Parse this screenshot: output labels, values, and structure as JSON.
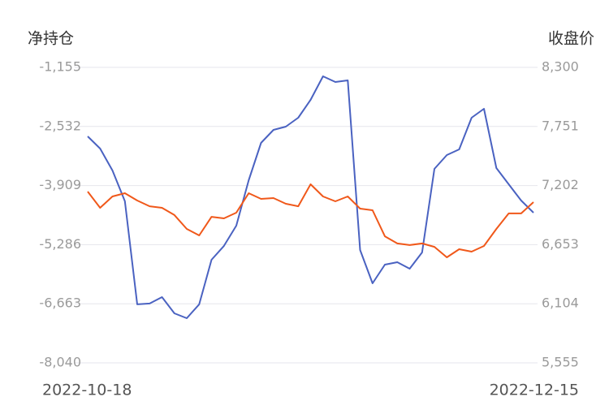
{
  "chart_data": {
    "type": "line",
    "y_title": "净持仓",
    "y2_title": "收盘价",
    "categories": [
      "2022-10-18",
      null,
      null,
      null,
      null,
      null,
      null,
      null,
      null,
      null,
      null,
      null,
      null,
      null,
      null,
      null,
      null,
      null,
      null,
      null,
      null,
      null,
      null,
      null,
      null,
      null,
      null,
      null,
      null,
      null,
      null,
      null,
      null,
      null,
      null,
      null,
      "2022-12-15"
    ],
    "series": [
      {
        "color": "#4a62c1",
        "values": [
          -2762,
          -3046,
          -3557,
          -4275,
          -6677,
          -6658,
          -6507,
          -6886,
          -6999,
          -6677,
          -5637,
          -5315,
          -4843,
          -3784,
          -2914,
          -2611,
          -2536,
          -2328,
          -1912,
          -1363,
          -1495,
          -1458,
          -5411,
          -6186,
          -5751,
          -5694,
          -5846,
          -5467,
          -3519,
          -3198,
          -3065,
          -2328,
          -2120,
          -3500,
          -3879,
          -4257,
          -4541
        ]
      },
      {
        "color": "#f0581a",
        "axis": "y2",
        "values": [
          7146,
          6995,
          7101,
          7131,
          7063,
          7010,
          6995,
          6928,
          6799,
          6739,
          6912,
          6897,
          6950,
          7131,
          7078,
          7086,
          7033,
          7010,
          7214,
          7101,
          7056,
          7101,
          6988,
          6973,
          6731,
          6664,
          6649,
          6664,
          6633,
          6535,
          6611,
          6588,
          6641,
          6799,
          6943,
          6943,
          7048
        ]
      }
    ],
    "ylim": [
      -8040,
      -1155
    ],
    "yticks": [
      {
        "value": -8040,
        "label": "-8,040"
      },
      {
        "value": -6663,
        "label": "-6,663"
      },
      {
        "value": -5286,
        "label": "-5,286"
      },
      {
        "value": -3909,
        "label": "-3,909"
      },
      {
        "value": -2532,
        "label": "-2,532"
      },
      {
        "value": -1155,
        "label": "-1,155"
      }
    ],
    "y2lim": [
      5555,
      8300
    ],
    "y2ticks": [
      {
        "value": 5555,
        "label": "5,555"
      },
      {
        "value": 6104,
        "label": "6,104"
      },
      {
        "value": 6653,
        "label": "6,653"
      },
      {
        "value": 7202,
        "label": "7,202"
      },
      {
        "value": 7751,
        "label": "7,751"
      },
      {
        "value": 8300,
        "label": "8,300"
      }
    ],
    "grid": true
  }
}
